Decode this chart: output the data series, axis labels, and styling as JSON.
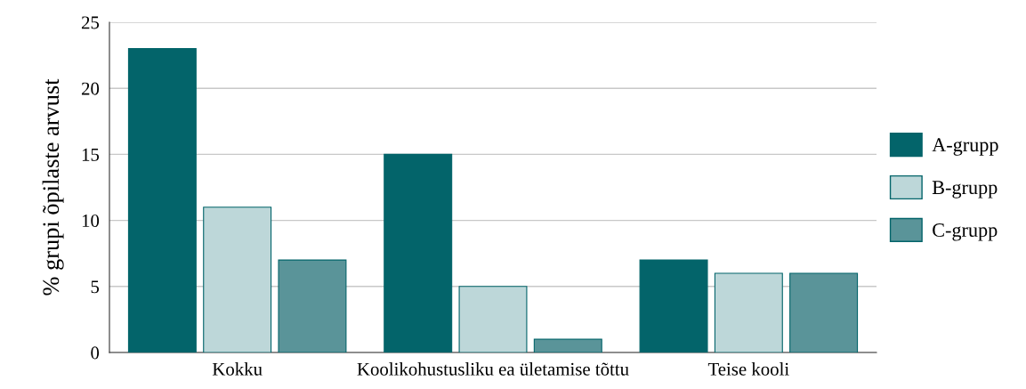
{
  "chart_data": {
    "type": "bar",
    "ylabel": "% grupi õpilaste arvust",
    "categories": [
      "Kokku",
      "Koolikohustusliku ea ületamise tõttu",
      "Teise kooli"
    ],
    "series": [
      {
        "name": "A-grupp",
        "color": "#03646a",
        "values": [
          23,
          15,
          7
        ]
      },
      {
        "name": "B-grupp",
        "color": "#bdd7d9",
        "values": [
          11,
          5,
          6
        ]
      },
      {
        "name": "C-grupp",
        "color": "#5a9499",
        "values": [
          7,
          1,
          6
        ]
      }
    ],
    "ylim": [
      0,
      25
    ],
    "yticks": [
      0,
      5,
      10,
      15,
      20,
      25
    ],
    "grid": "y",
    "legend": "right"
  }
}
